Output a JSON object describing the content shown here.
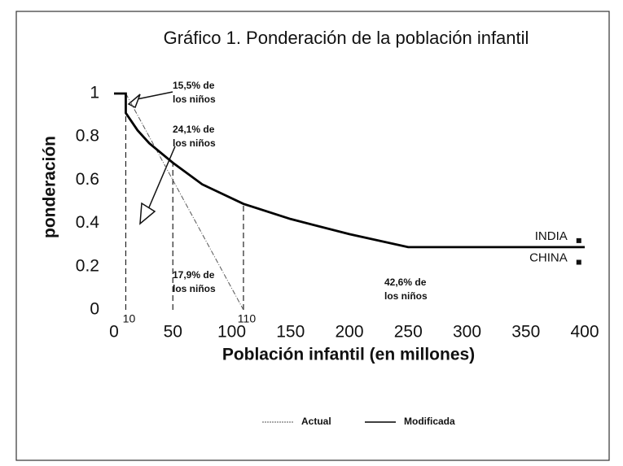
{
  "chart_data": {
    "type": "line",
    "title": "Gráfico 1.  Ponderación de la población infantil",
    "x_label": "Población infantil (en millones)",
    "y_label": "ponderación",
    "xlim": [
      0,
      400
    ],
    "ylim": [
      0,
      1
    ],
    "xticks": [
      0,
      50,
      100,
      150,
      200,
      250,
      300,
      350,
      400
    ],
    "yticks": [
      0,
      0.2,
      0.4,
      0.6,
      0.8,
      1
    ],
    "grid": false,
    "series": [
      {
        "name": "Actual",
        "color": "#555555",
        "style": "dashdot",
        "x": [
          10,
          110
        ],
        "values": [
          1,
          0
        ]
      },
      {
        "name": "Modificada",
        "color": "#000000",
        "style": "solid",
        "x": [
          0,
          10,
          10,
          20,
          30,
          50,
          75,
          110,
          150,
          200,
          250,
          400
        ],
        "values": [
          1,
          1,
          0.91,
          0.83,
          0.77,
          0.68,
          0.58,
          0.49,
          0.42,
          0.35,
          0.29,
          0.29
        ]
      }
    ],
    "markers": [
      {
        "x": 10,
        "top": 1,
        "label": 10
      },
      {
        "x": 50,
        "top": 0.68
      },
      {
        "x": 110,
        "top": 0.49,
        "label": 110
      }
    ],
    "points": [
      {
        "name": "INDIA",
        "x": 395,
        "y": 0.32
      },
      {
        "name": "CHINA",
        "x": 395,
        "y": 0.22
      }
    ],
    "annotations": [
      {
        "lines": [
          "15,5% de",
          "los niños"
        ]
      },
      {
        "lines": [
          "24,1% de",
          "los niños"
        ]
      },
      {
        "lines": [
          "17,9% de",
          "los niños"
        ]
      },
      {
        "lines": [
          "42,6% de",
          "los niños"
        ]
      }
    ],
    "legend_position": "bottom"
  }
}
